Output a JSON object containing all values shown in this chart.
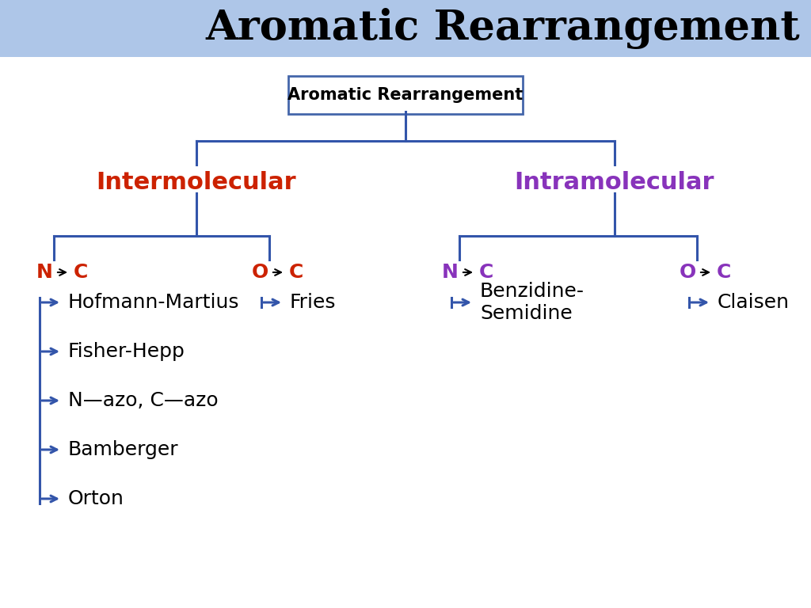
{
  "title": "Aromatic Rearrangement",
  "title_bg": "#aec6e8",
  "title_color": "#000000",
  "title_fontsize": 38,
  "root_label": "Aromatic Rearrangement",
  "root_box_color": "#4466aa",
  "root_fontsize": 15,
  "intermolecular_label": "Intermolecular",
  "intermolecular_color": "#cc2200",
  "intramolecular_label": "Intramolecular",
  "intramolecular_color": "#8833bb",
  "category_fontsize": 22,
  "left_nc_items": [
    "Hofmann-Martius",
    "Fisher-Hepp",
    "N—azo, C—azo",
    "Bamberger",
    "Orton"
  ],
  "left_oc_items": [
    "Fries"
  ],
  "right_nc_items": [
    "Benzidine-\nSemidine"
  ],
  "right_oc_items": [
    "Claisen"
  ],
  "line_color": "#3355aa",
  "line_width": 2.2,
  "bg_color": "#ffffff",
  "text_color": "#000000",
  "item_fontsize": 18,
  "nc_label_fontsize": 18,
  "red_color": "#cc2200",
  "purple_color": "#8833bb"
}
